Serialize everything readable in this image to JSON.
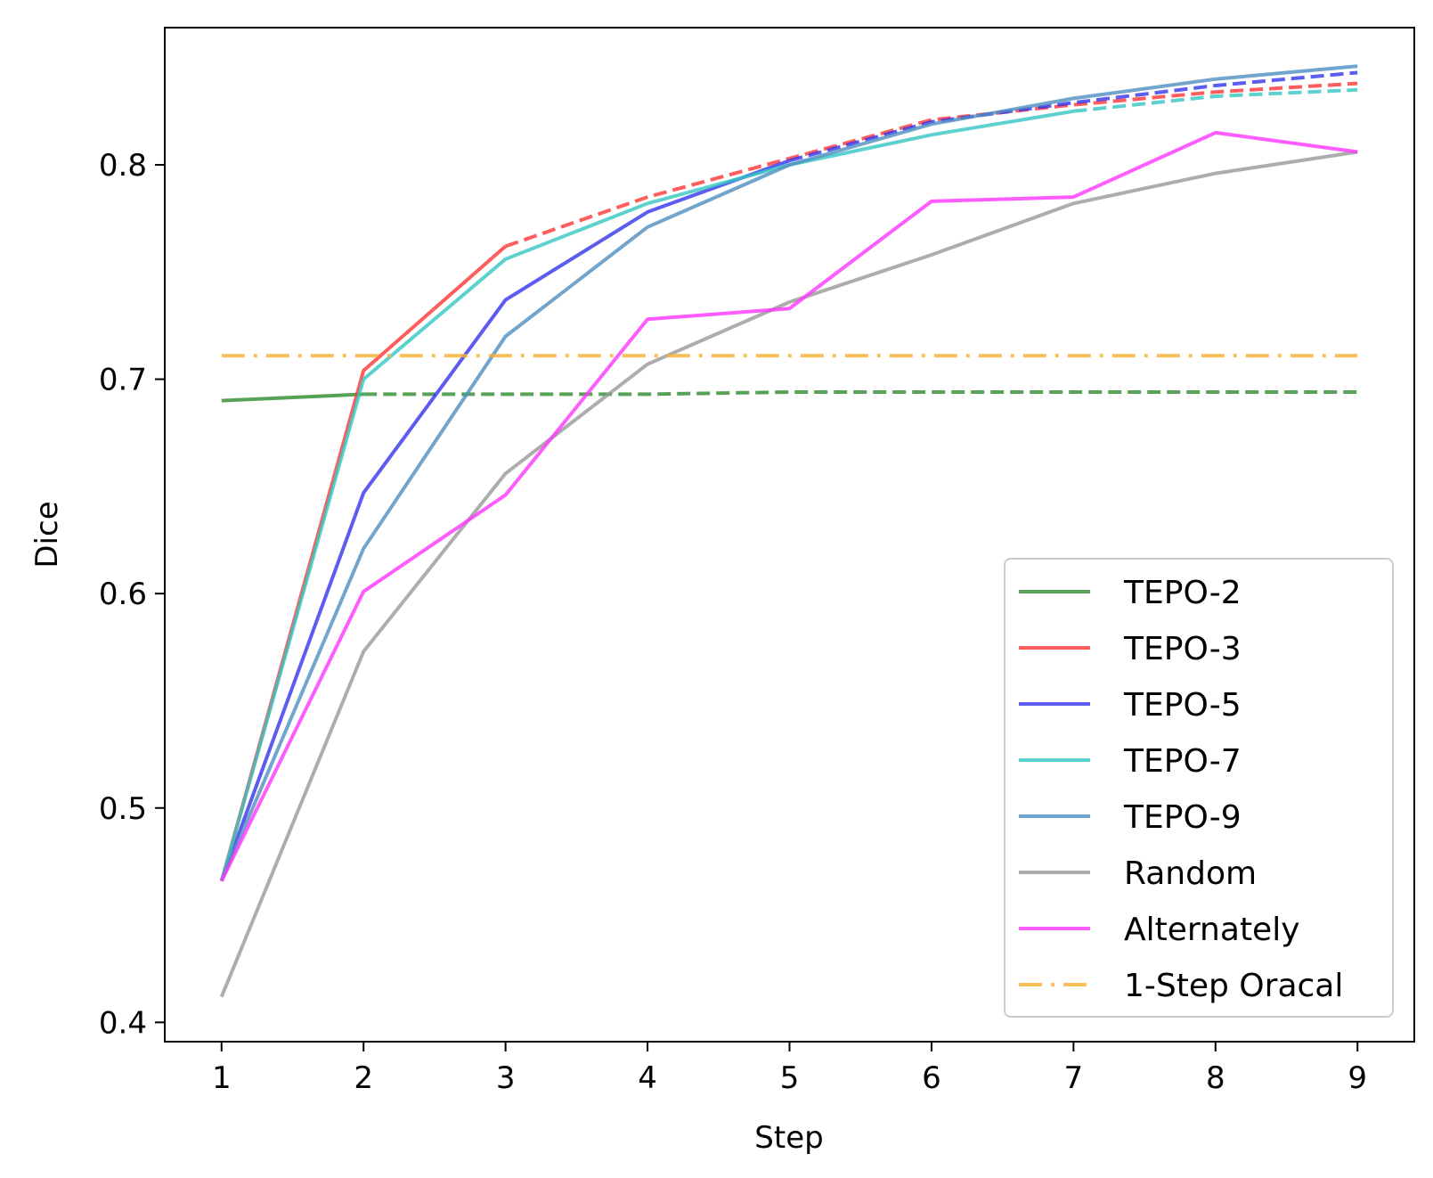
{
  "chart_data": {
    "type": "line",
    "xlabel": "Step",
    "ylabel": "Dice",
    "x": [
      1,
      2,
      3,
      4,
      5,
      6,
      7,
      8,
      9
    ],
    "xlim": [
      0.6,
      9.4
    ],
    "ylim": [
      0.391,
      0.864
    ],
    "xticks": [
      "1",
      "2",
      "3",
      "4",
      "5",
      "6",
      "7",
      "8",
      "9"
    ],
    "yticks": [
      "0.4",
      "0.5",
      "0.6",
      "0.7",
      "0.8"
    ],
    "ytick_values": [
      0.4,
      0.5,
      0.6,
      0.7,
      0.8
    ],
    "grid": false,
    "legend_position": "lower-right",
    "note_dashes": "solid segments are observed values; dashed segments continue each TEPO curve",
    "series": [
      {
        "name": "TEPO-2",
        "color": "#2e8b2e",
        "style": "solid",
        "values": [
          0.69,
          0.693,
          0.693,
          0.693,
          0.694,
          0.694,
          0.694,
          0.694,
          0.694
        ],
        "solid_until": 2
      },
      {
        "name": "TEPO-3",
        "color": "#ff3333",
        "style": "solid",
        "values": [
          0.466,
          0.704,
          0.762,
          0.785,
          0.803,
          0.821,
          0.828,
          0.834,
          0.838
        ],
        "solid_until": 3
      },
      {
        "name": "TEPO-5",
        "color": "#3333ee",
        "style": "solid",
        "values": [
          0.466,
          0.647,
          0.737,
          0.778,
          0.802,
          0.82,
          0.829,
          0.837,
          0.843
        ],
        "solid_until": 5
      },
      {
        "name": "TEPO-7",
        "color": "#33c6c2",
        "style": "solid",
        "values": [
          0.466,
          0.7,
          0.756,
          0.782,
          0.8,
          0.814,
          0.825,
          0.832,
          0.835
        ],
        "solid_until": 7
      },
      {
        "name": "TEPO-9",
        "color": "#4f8fc0",
        "style": "solid",
        "values": [
          0.466,
          0.621,
          0.72,
          0.771,
          0.8,
          0.819,
          0.831,
          0.84,
          0.846
        ],
        "solid_until": 9
      },
      {
        "name": "Random",
        "color": "#999999",
        "style": "solid",
        "values": [
          0.412,
          0.573,
          0.656,
          0.707,
          0.736,
          0.758,
          0.782,
          0.796,
          0.806
        ],
        "solid_until": 9
      },
      {
        "name": "Alternately",
        "color": "#ff33ff",
        "style": "solid",
        "values": [
          0.466,
          0.601,
          0.646,
          0.728,
          0.733,
          0.783,
          0.785,
          0.815,
          0.806
        ],
        "solid_until": 9
      },
      {
        "name": "1-Step Oracal",
        "color": "#f7b030",
        "style": "dashdot",
        "values": [
          0.711,
          0.711,
          0.711,
          0.711,
          0.711,
          0.711,
          0.711,
          0.711,
          0.711
        ],
        "solid_until": 9
      }
    ]
  }
}
